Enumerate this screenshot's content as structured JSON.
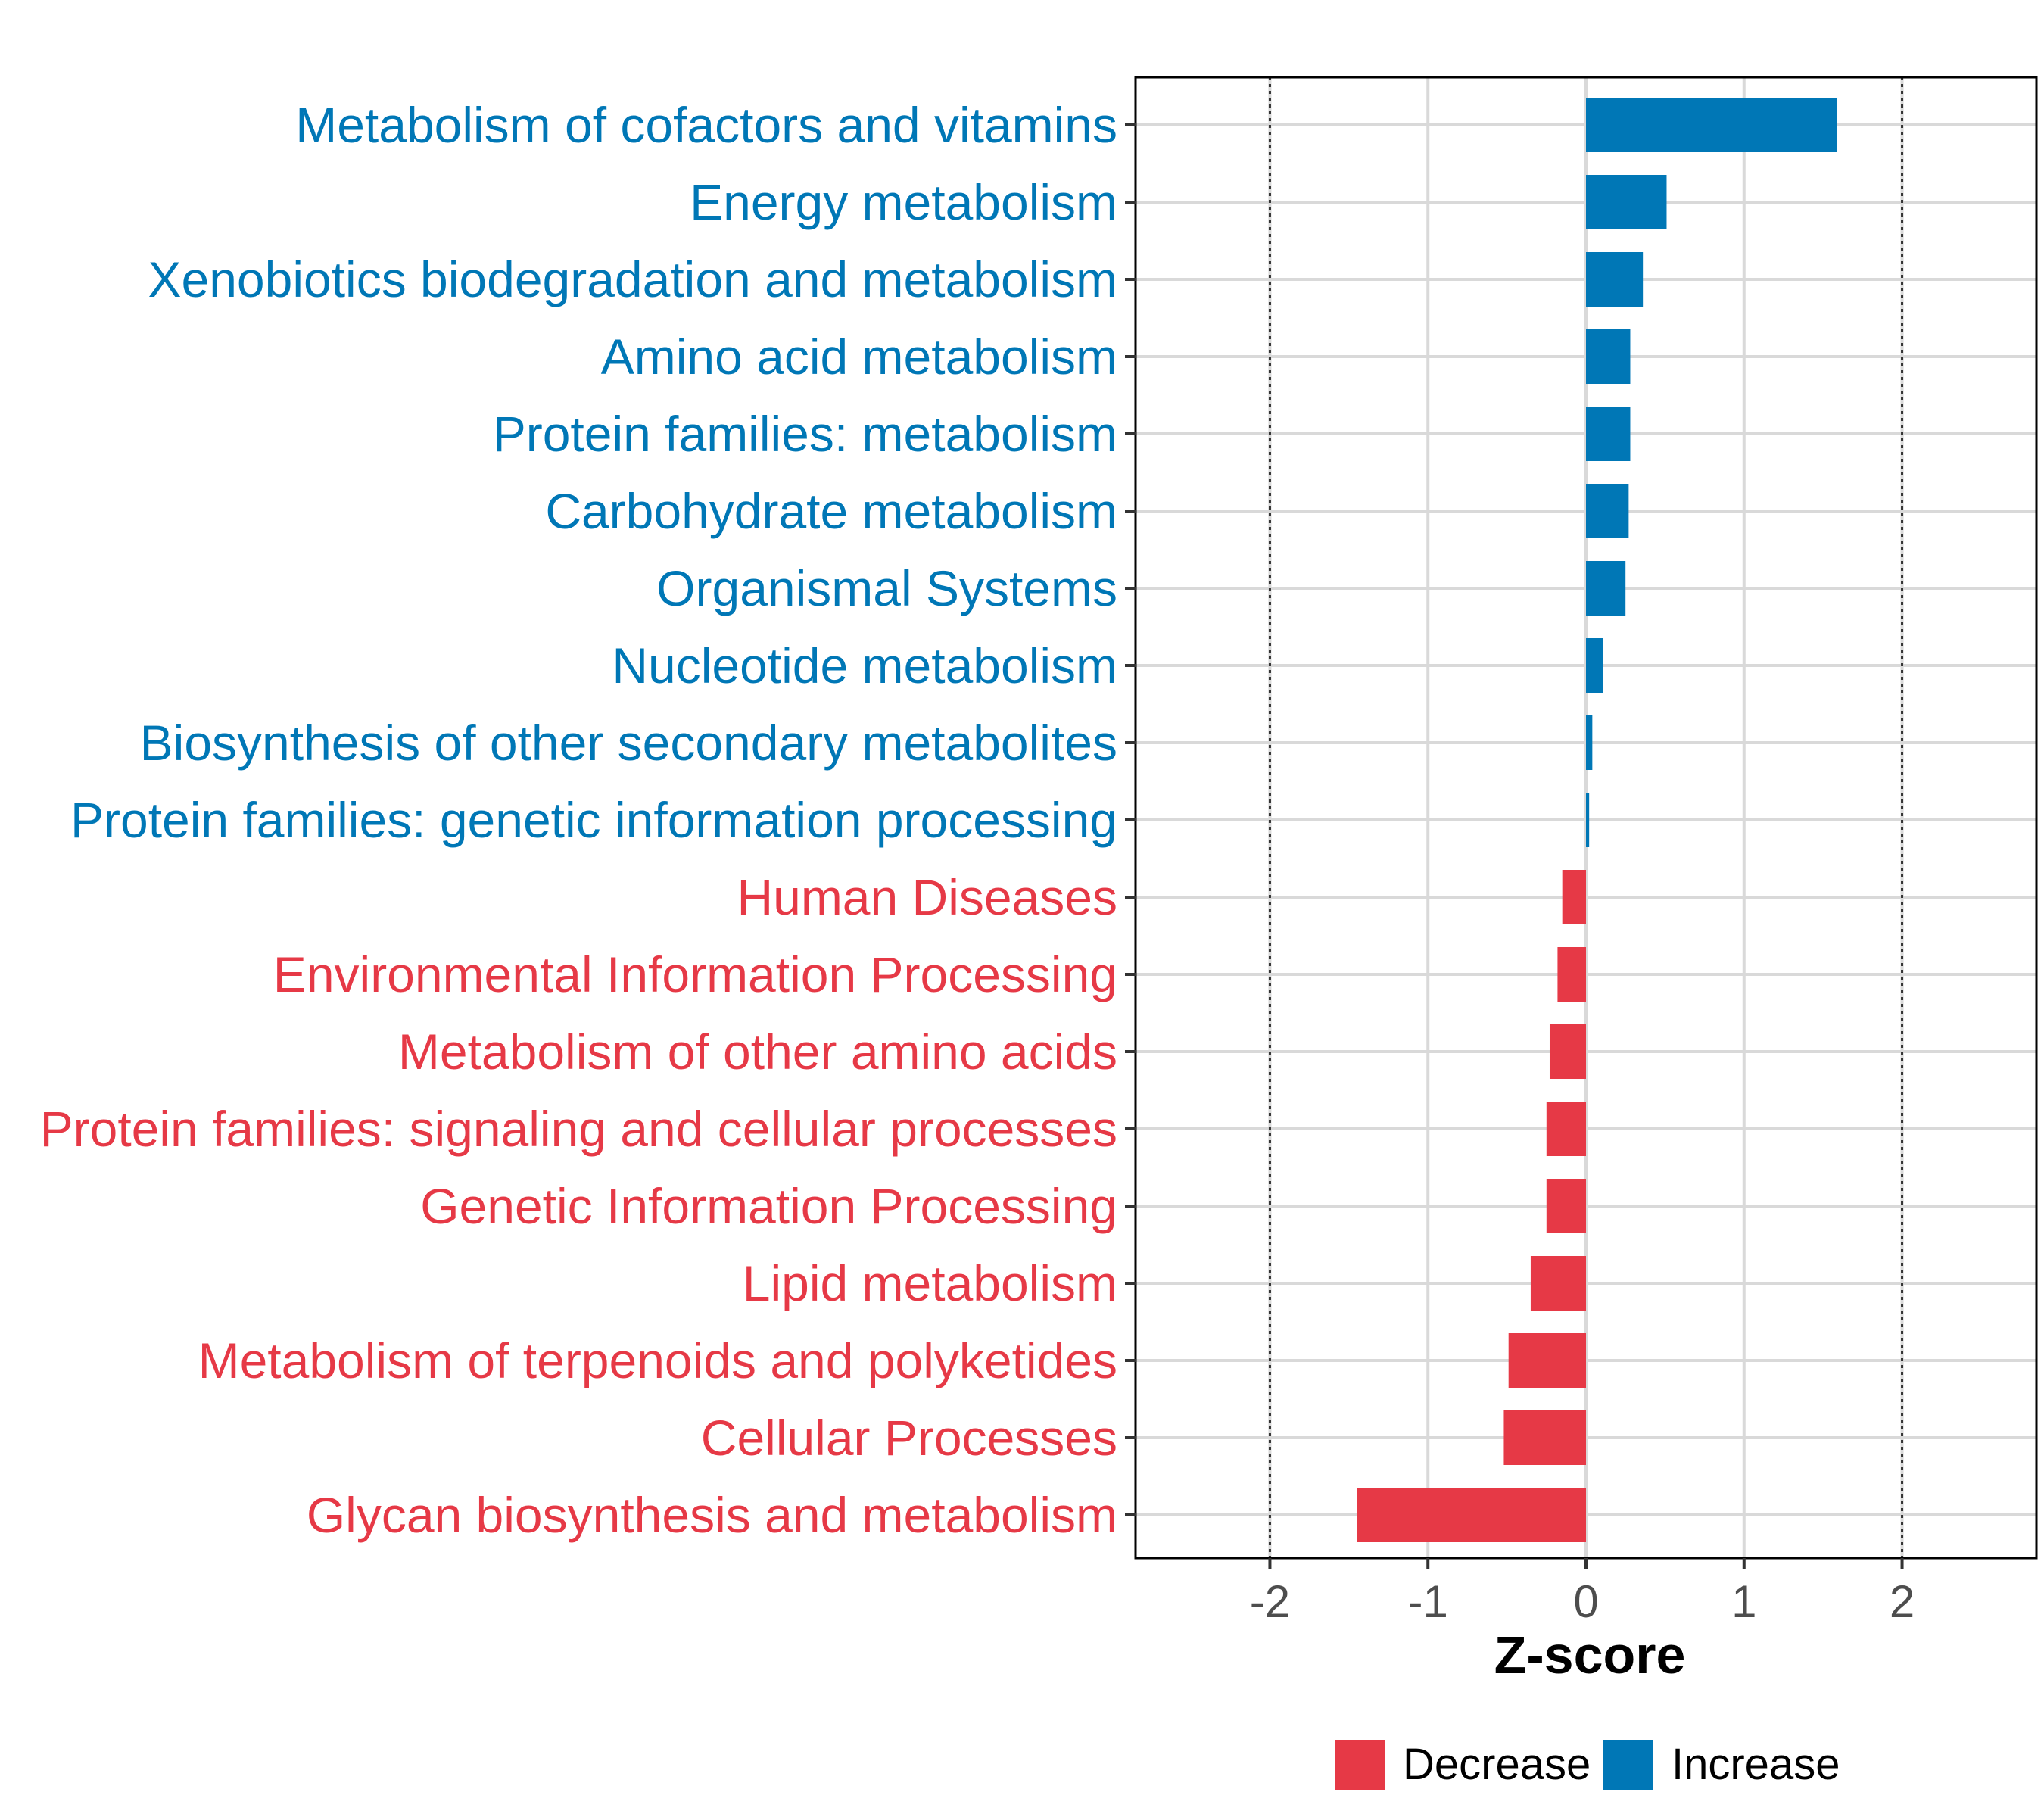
{
  "chart_data": {
    "type": "bar",
    "orientation": "horizontal",
    "title": "",
    "xlabel": "Z-score",
    "ylabel": "",
    "xlim": [
      -2.85,
      2.85
    ],
    "xticks": [
      -2,
      -1,
      0,
      1,
      2
    ],
    "xtick_labels": [
      "-2",
      "-1",
      "0",
      "1",
      "2"
    ],
    "reference_lines": [
      -2,
      2
    ],
    "grid": true,
    "colors": {
      "Decrease": "#e63946",
      "Increase": "#0077b6"
    },
    "categories": [
      "Metabolism of cofactors and vitamins",
      "Energy metabolism",
      "Xenobiotics biodegradation and metabolism",
      "Amino acid metabolism",
      "Protein families: metabolism",
      "Carbohydrate metabolism",
      "Organismal Systems",
      "Nucleotide metabolism",
      "Biosynthesis of other secondary metabolites",
      "Protein families: genetic information processing",
      "Human Diseases",
      "Environmental Information Processing",
      "Metabolism of other amino acids",
      "Protein families: signaling and cellular processes",
      "Genetic Information Processing",
      "Lipid metabolism",
      "Metabolism of terpenoids and polyketides",
      "Cellular Processes",
      "Glycan biosynthesis and metabolism"
    ],
    "values": [
      1.59,
      0.51,
      0.36,
      0.28,
      0.28,
      0.27,
      0.25,
      0.11,
      0.04,
      0.02,
      -0.15,
      -0.18,
      -0.23,
      -0.25,
      -0.25,
      -0.35,
      -0.49,
      -0.52,
      -1.45
    ],
    "groups": [
      "Increase",
      "Increase",
      "Increase",
      "Increase",
      "Increase",
      "Increase",
      "Increase",
      "Increase",
      "Increase",
      "Increase",
      "Decrease",
      "Decrease",
      "Decrease",
      "Decrease",
      "Decrease",
      "Decrease",
      "Decrease",
      "Decrease",
      "Decrease"
    ],
    "legend": {
      "position": "bottom",
      "entries": [
        {
          "label": "Decrease",
          "color": "#e63946"
        },
        {
          "label": "Increase",
          "color": "#0077b6"
        }
      ]
    }
  }
}
